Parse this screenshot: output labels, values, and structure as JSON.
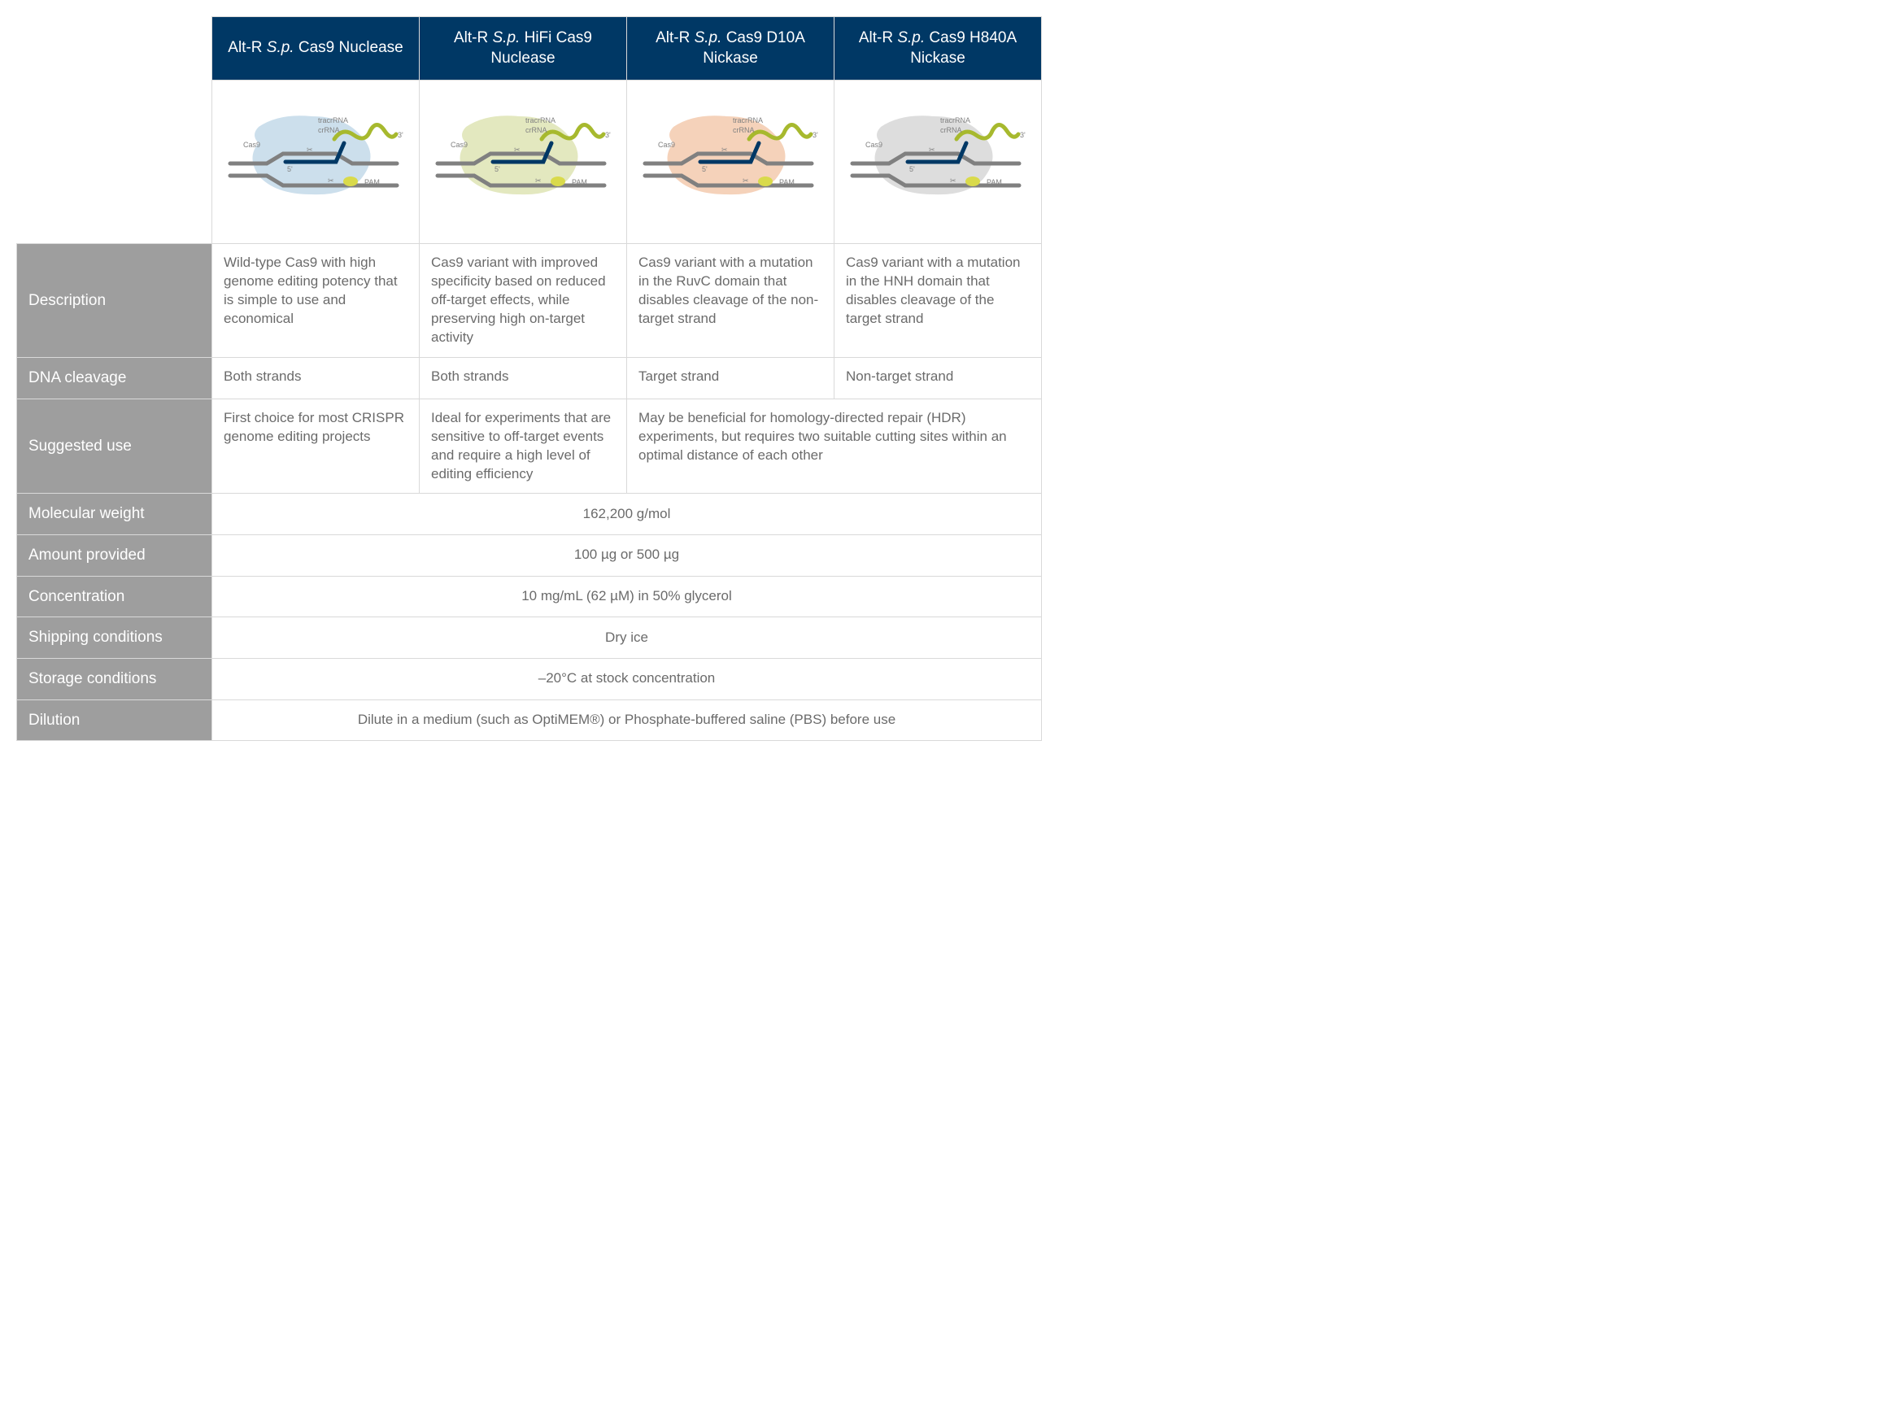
{
  "products": [
    {
      "name_pre": "Alt-R ",
      "sp": "S.p.",
      "name_post": " Cas9 Nuclease",
      "blob": "#c7dbea"
    },
    {
      "name_pre": "Alt-R ",
      "sp": "S.p.",
      "name_post": " HiFi Cas9 Nuclease",
      "blob": "#e0e6b8"
    },
    {
      "name_pre": "Alt-R ",
      "sp": "S.p.",
      "name_post": " Cas9 D10A Nickase",
      "blob": "#f4cdb3"
    },
    {
      "name_pre": "Alt-R ",
      "sp": "S.p.",
      "name_post": " Cas9 H840A Nickase",
      "blob": "#d9d9d9"
    }
  ],
  "diagram_labels": {
    "cas9": "Cas9",
    "tracr": "tracrRNA",
    "cr": "crRNA",
    "five": "5'",
    "three": "3'",
    "pam": "PAM"
  },
  "rows": {
    "description": {
      "label": "Description",
      "c1": "Wild-type Cas9 with high genome editing potency that is simple to use and economical",
      "c2": "Cas9 variant with improved specificity based on reduced off-target effects, while preserving high on-target activity",
      "c3": "Cas9 variant with a mutation in the RuvC domain that disables cleavage of the non-target strand",
      "c4": "Cas9 variant with a mutation in the HNH domain that disables cleavage of the target strand"
    },
    "cleavage": {
      "label": "DNA cleavage",
      "c1": "Both strands",
      "c2": "Both strands",
      "c3": "Target strand",
      "c4": "Non-target strand"
    },
    "use": {
      "label": "Suggested use",
      "c1": "First choice for most CRISPR genome editing projects",
      "c2": "Ideal for experiments that are sensitive to off-target events and require a high level of editing efficiency",
      "c34": "May be beneficial for homology-directed repair (HDR) experiments, but requires two suitable cutting sites within an optimal distance of each other"
    },
    "mw": {
      "label": "Molecular weight",
      "val": "162,200 g/mol"
    },
    "amount": {
      "label": "Amount provided",
      "val": "100 µg or 500 µg"
    },
    "conc": {
      "label": "Concentration",
      "val": "10 mg/mL (62 µM) in 50% glycerol"
    },
    "ship": {
      "label": "Shipping conditions",
      "val": "Dry ice"
    },
    "storage": {
      "label": "Storage conditions",
      "val": "–20°C at stock concentration"
    },
    "dilution": {
      "label": "Dilution",
      "val": "Dilute in a medium (such as OptiMEM®) or Phosphate-buffered saline (PBS) before use"
    }
  }
}
